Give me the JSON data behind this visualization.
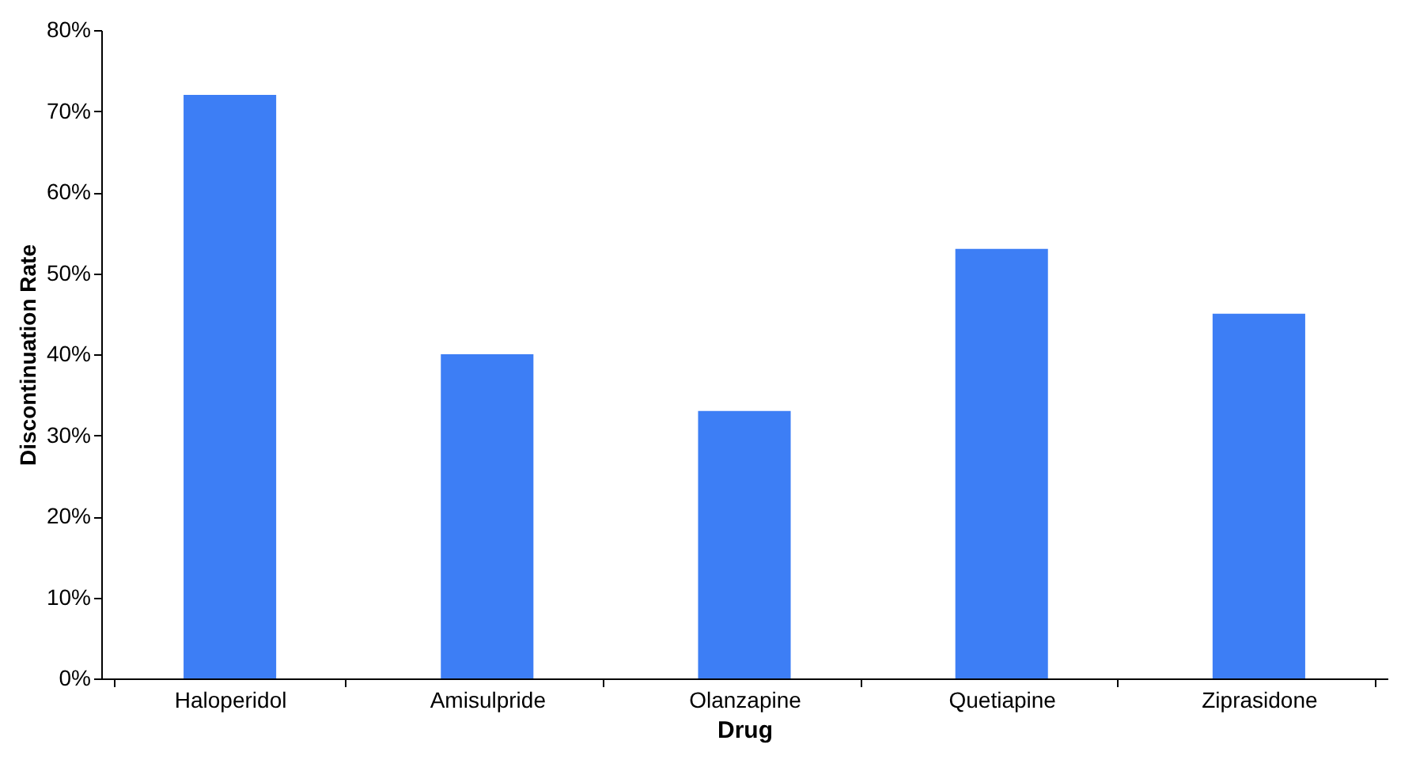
{
  "chart_data": {
    "type": "bar",
    "xlabel": "Drug",
    "ylabel": "Discontinuation Rate",
    "categories": [
      "Haloperidol",
      "Amisulpride",
      "Olanzapine",
      "Quetiapine",
      "Ziprasidone"
    ],
    "values": [
      72,
      40,
      33,
      53,
      45
    ],
    "color": "#3d7ef5",
    "ylim": [
      0,
      80
    ],
    "yticks": [
      {
        "value": 0,
        "label": "0%"
      },
      {
        "value": 10,
        "label": "10%"
      },
      {
        "value": 20,
        "label": "20%"
      },
      {
        "value": 30,
        "label": "30%"
      },
      {
        "value": 40,
        "label": "40%"
      },
      {
        "value": 50,
        "label": "50%"
      },
      {
        "value": 60,
        "label": "60%"
      },
      {
        "value": 70,
        "label": "70%"
      },
      {
        "value": 80,
        "label": "80%"
      }
    ],
    "grid": false
  }
}
